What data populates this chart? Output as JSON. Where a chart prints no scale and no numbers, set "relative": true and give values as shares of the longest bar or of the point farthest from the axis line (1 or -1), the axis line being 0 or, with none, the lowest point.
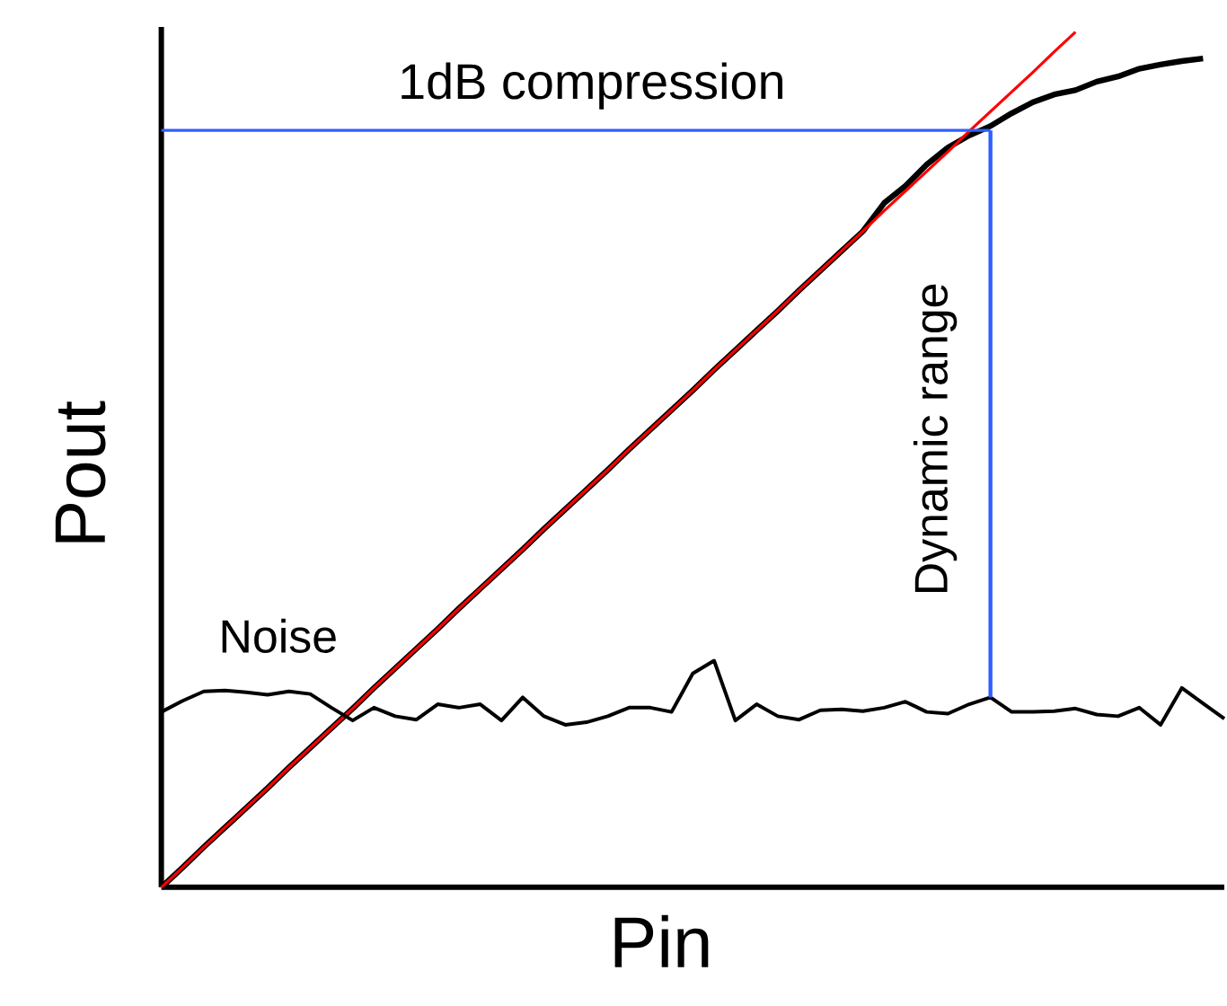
{
  "chart_data": {
    "type": "line",
    "relative": true,
    "xlabel": "Pin",
    "ylabel": "Pout",
    "marker": "none",
    "line_style": "solid",
    "categories": [
      null,
      null,
      null,
      null,
      null,
      null,
      null,
      null,
      null,
      null,
      null,
      null,
      null,
      null,
      null,
      null,
      null,
      null,
      null,
      null,
      null,
      null,
      null,
      null,
      null,
      null,
      null,
      null,
      null,
      null,
      null,
      null,
      null,
      null,
      null,
      null,
      null,
      null,
      null,
      null,
      null,
      null,
      null,
      null,
      null,
      null,
      null,
      null,
      null,
      null,
      null
    ],
    "series": [
      {
        "color": "#000000",
        "values": [
          0,
          0.023,
          0.047,
          0.07,
          0.093,
          0.116,
          0.14,
          0.163,
          0.186,
          0.209,
          0.233,
          0.256,
          0.279,
          0.302,
          0.326,
          0.349,
          0.372,
          0.395,
          0.419,
          0.442,
          0.465,
          0.488,
          0.512,
          0.535,
          0.558,
          0.581,
          0.605,
          0.628,
          0.651,
          0.674,
          0.698,
          0.721,
          0.744,
          0.767,
          0.8,
          0.82,
          0.845,
          0.865,
          0.879,
          0.89,
          0.905,
          0.918,
          0.927,
          0.932,
          0.942,
          0.948,
          0.957,
          0.962,
          0.966,
          0.969,
          null
        ]
      },
      {
        "color": "#ff0000",
        "values": [
          0,
          0.023,
          0.047,
          0.07,
          0.093,
          0.116,
          0.14,
          0.163,
          0.186,
          0.209,
          0.233,
          0.256,
          0.279,
          0.302,
          0.326,
          0.349,
          0.372,
          0.395,
          0.419,
          0.442,
          0.465,
          0.488,
          0.512,
          0.535,
          0.558,
          0.581,
          0.605,
          0.628,
          0.651,
          0.674,
          0.698,
          0.721,
          0.744,
          0.767,
          0.791,
          0.814,
          0.837,
          0.86,
          0.884,
          0.907,
          0.93,
          0.953,
          0.977,
          1,
          null,
          null,
          null,
          null,
          null,
          null,
          null
        ]
      },
      {
        "color": "#000000",
        "values": [
          0.205,
          0.218,
          0.229,
          0.23,
          0.228,
          0.225,
          0.229,
          0.226,
          0.21,
          0.195,
          0.21,
          0.2,
          0.196,
          0.214,
          0.21,
          0.214,
          0.195,
          0.222,
          0.2,
          0.19,
          0.193,
          0.2,
          0.21,
          0.21,
          0.205,
          0.25,
          0.265,
          0.195,
          0.214,
          0.2,
          0.196,
          0.207,
          0.208,
          0.206,
          0.21,
          0.217,
          0.205,
          0.203,
          0.214,
          0.222,
          0.205,
          0.205,
          0.206,
          0.209,
          0.202,
          0.2,
          0.21,
          0.19,
          0.233,
          0.215,
          0.197
        ]
      },
      {
        "color": "#2f5fff",
        "values": [
          0.885,
          0.885,
          0.885,
          0.885,
          0.885,
          0.885,
          0.885,
          0.885,
          0.885,
          0.885,
          0.885,
          0.885,
          0.885,
          0.885,
          0.885,
          0.885,
          0.885,
          0.885,
          0.885,
          0.885,
          0.885,
          0.885,
          0.885,
          0.885,
          0.885,
          0.885,
          0.885,
          0.885,
          0.885,
          0.885,
          0.885,
          0.885,
          0.885,
          0.885,
          0.885,
          0.885,
          0.885,
          0.885,
          0.885,
          0.885,
          null,
          null,
          null,
          null,
          null,
          null,
          null,
          null,
          null,
          null,
          null
        ]
      }
    ],
    "annotations": [
      "1dB compression",
      "Dynamic range",
      "Noise"
    ]
  }
}
